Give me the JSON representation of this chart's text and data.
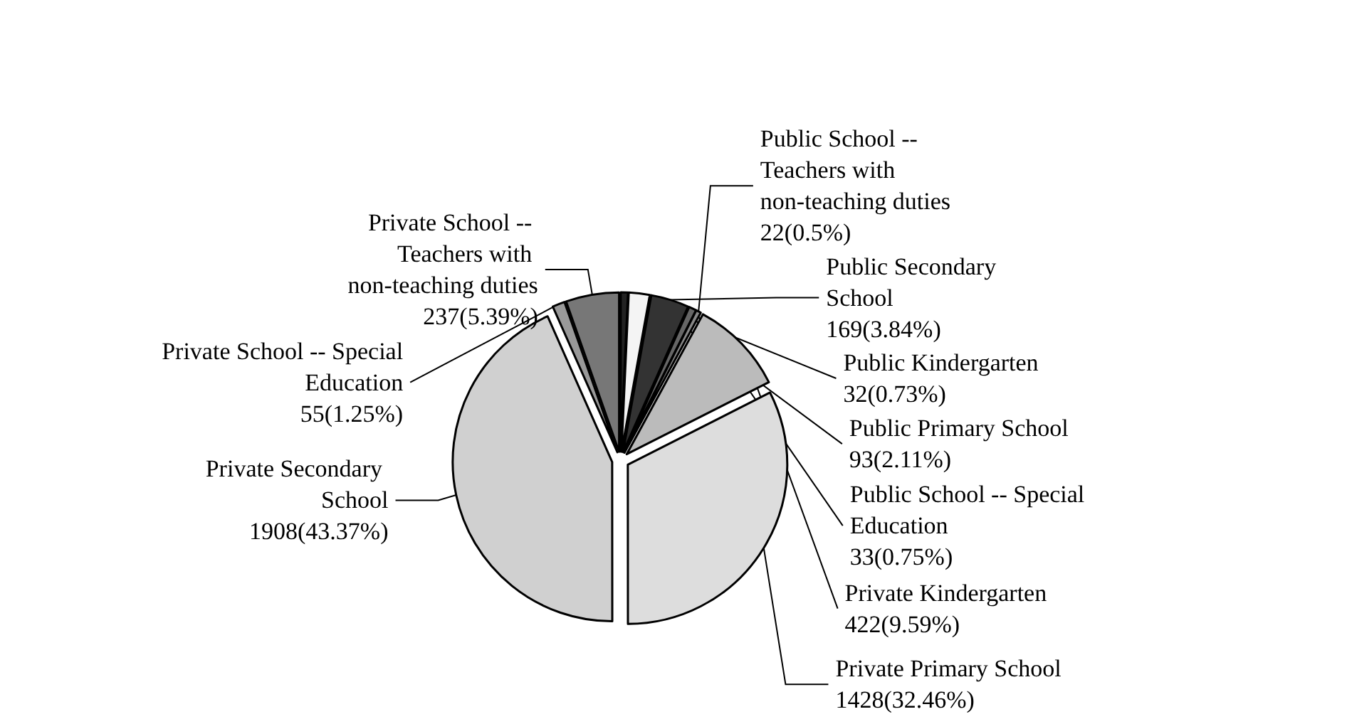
{
  "chart_data": {
    "type": "pie",
    "categories": [
      "Public Kindergarten",
      "Public Primary School",
      "Public Secondary School",
      "Public School -- Special Education",
      "Public School -- Teachers with non-teaching duties",
      "Private Kindergarten",
      "Private Primary School",
      "Private Secondary School",
      "Private School -- Special Education",
      "Private School -- Teachers with non-teaching duties"
    ],
    "values": [
      32,
      93,
      169,
      33,
      22,
      422,
      1428,
      1908,
      55,
      237
    ],
    "value_labels": [
      "32(0.73%)",
      "93(2.11%)",
      "169(3.84%)",
      "33(0.75%)",
      "22(0.5%)",
      "422(9.59%)",
      "1428(32.46%)",
      "1908(43.37%)",
      "55(1.25%)",
      "237(5.39%)"
    ],
    "colors": [
      "#222222",
      "#f4f4f4",
      "#333333",
      "#666666",
      "#888888",
      "#bbbbbb",
      "#dddddd",
      "#d0d0d0",
      "#999999",
      "#777777"
    ],
    "legend": false
  }
}
